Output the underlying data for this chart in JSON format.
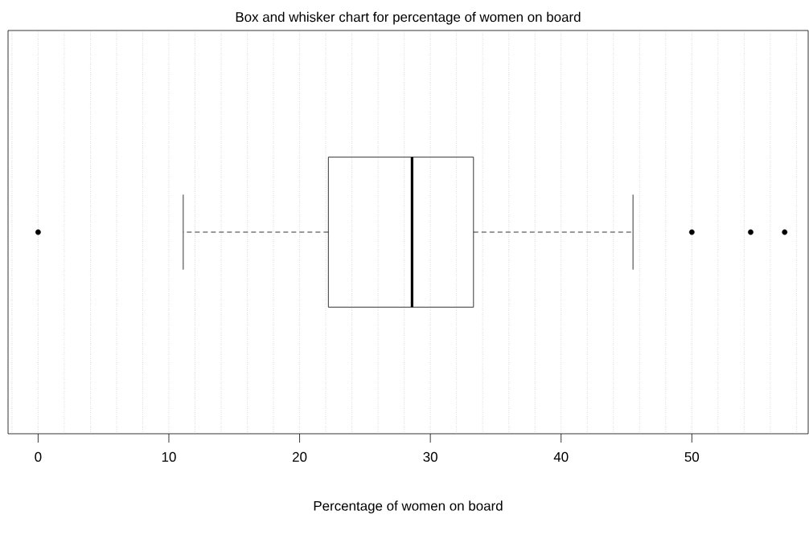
{
  "chart_data": {
    "type": "box",
    "title": "Box and whisker chart for percentage of women on board",
    "xlabel": "Percentage of women on board",
    "orientation": "horizontal",
    "categories": [
      null
    ],
    "boxes": [
      {
        "low": 11.1,
        "q1": 22.2,
        "median": 28.6,
        "q3": 33.3,
        "high": 45.5,
        "outliers": [
          0,
          50,
          54.5,
          57.1
        ]
      }
    ],
    "xlim": [
      -2.3,
      58.9
    ],
    "xticks": [
      0,
      10,
      20,
      30,
      40,
      50
    ],
    "grid": "x"
  }
}
